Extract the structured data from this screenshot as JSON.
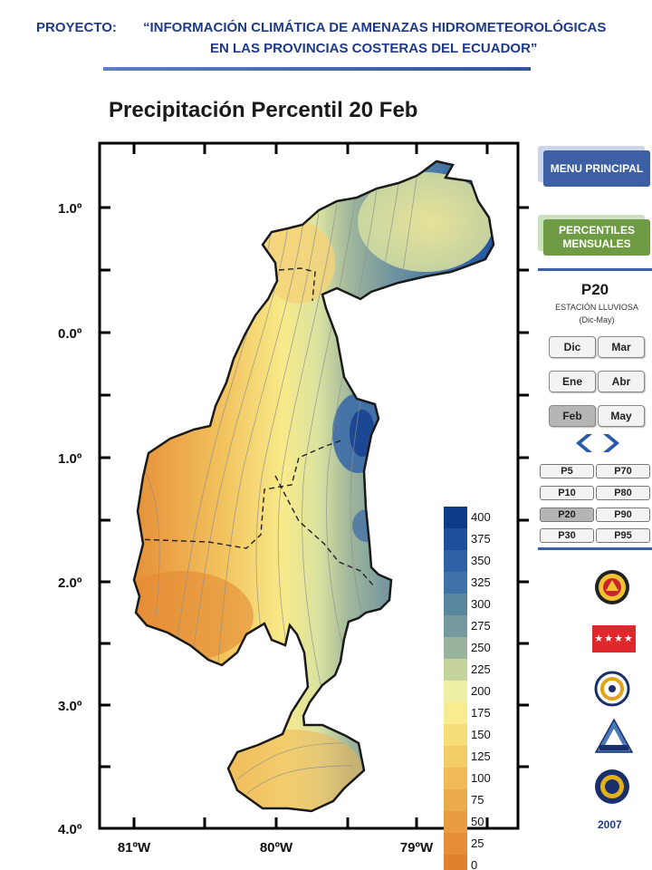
{
  "header": {
    "label": "PROYECTO:",
    "title_line1": "“INFORMACIÓN CLIMÁTICA DE AMENAZAS HIDROMETEOROLÓGICAS",
    "title_line2": "EN LAS PROVINCIAS COSTERAS DEL ECUADOR”"
  },
  "map": {
    "title": "Precipitación Percentil 20 Feb",
    "lat_labels": [
      "1.0º",
      "0.0º",
      "1.0º",
      "2.0º",
      "3.0º",
      "4.0º"
    ],
    "lon_labels": [
      "81ºW",
      "80ºW",
      "79ºW"
    ]
  },
  "chart_data": {
    "type": "heatmap",
    "title": "Precipitación Percentil 20 Feb",
    "colorbar_values": [
      400,
      375,
      350,
      325,
      300,
      275,
      250,
      225,
      200,
      175,
      150,
      125,
      100,
      75,
      50,
      25,
      0
    ],
    "colorbar_colors": [
      "#0d3a8a",
      "#1e4f9c",
      "#2e62a6",
      "#3f72a6",
      "#5a87a0",
      "#7699a0",
      "#98b49c",
      "#c5d49c",
      "#eef0a6",
      "#f8ec8e",
      "#f6dd78",
      "#f3cc66",
      "#f0bb57",
      "#ecab4b",
      "#e99c40",
      "#e58e37",
      "#e1812e"
    ],
    "colorbar_min": 0,
    "colorbar_max": 400
  },
  "sidebar": {
    "menu_label": "MENU PRINCIPAL",
    "percentiles_label": "PERCENTILES MENSUALES",
    "percentile": "P20",
    "season": "ESTACIÓN LLUVIOSA",
    "season_months": "(Dic-May)",
    "month_buttons": [
      {
        "label": "Dic",
        "active": false
      },
      {
        "label": "Mar",
        "active": false
      },
      {
        "label": "Ene",
        "active": false
      },
      {
        "label": "Abr",
        "active": false
      },
      {
        "label": "Feb",
        "active": true
      },
      {
        "label": "May",
        "active": false
      }
    ],
    "percentile_buttons": [
      {
        "label": "P5",
        "active": false
      },
      {
        "label": "P70",
        "active": false
      },
      {
        "label": "P10",
        "active": false
      },
      {
        "label": "P80",
        "active": false
      },
      {
        "label": "P20",
        "active": true
      },
      {
        "label": "P90",
        "active": false
      },
      {
        "label": "P30",
        "active": false
      },
      {
        "label": "P95",
        "active": false
      }
    ],
    "year": "2007",
    "logo_flag_text": "★★★★"
  },
  "colors": {
    "header_text": "#1f3a8a",
    "menu_button": "#3d5fa3",
    "percentile_button": "#6e9b44"
  }
}
